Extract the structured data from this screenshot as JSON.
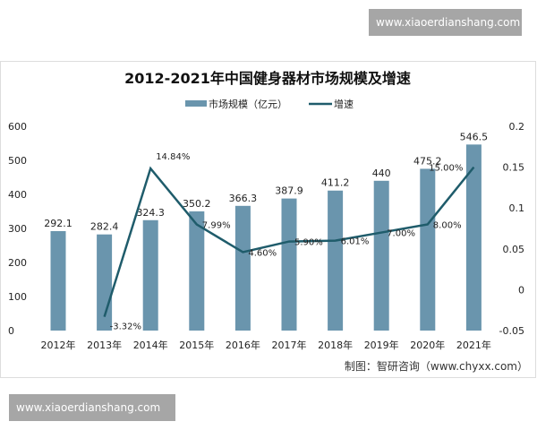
{
  "watermark": "www.xiaoerdianshang.com",
  "source": "制图：智研咨询（www.chyxx.com）",
  "logo_text": "智研咨询 www.chyxx.com",
  "chart_data": {
    "type": "bar+line",
    "title": "2012-2021年中国健身器材市场规模及增速",
    "categories": [
      "2012年",
      "2013年",
      "2014年",
      "2015年",
      "2016年",
      "2017年",
      "2018年",
      "2019年",
      "2020年",
      "2021年"
    ],
    "series": [
      {
        "name": "市场规模（亿元）",
        "type": "bar",
        "axis": "left",
        "color": "#6a95ad",
        "values": [
          292.1,
          282.4,
          324.3,
          350.2,
          366.3,
          387.9,
          411.2,
          440,
          475.2,
          546.5
        ],
        "labels": [
          "292.1",
          "282.4",
          "324.3",
          "350.2",
          "366.3",
          "387.9",
          "411.2",
          "440",
          "475.2",
          "546.5"
        ]
      },
      {
        "name": "增速",
        "type": "line",
        "axis": "right",
        "color": "#1f5c6b",
        "values": [
          null,
          -0.0332,
          0.1484,
          0.0799,
          0.046,
          0.059,
          0.0601,
          0.07,
          0.08,
          0.15
        ],
        "labels": [
          "",
          "-3.32%",
          "14.84%",
          "7.99%",
          "4.60%",
          "5.90%",
          "6.01%",
          "7.00%",
          "8.00%",
          "15.00%"
        ]
      }
    ],
    "ylim": [
      0,
      600
    ],
    "yticks": [
      "0",
      "100",
      "200",
      "300",
      "400",
      "500",
      "600"
    ],
    "y2lim": [
      -0.05,
      0.2
    ],
    "y2ticks": [
      "-0.05",
      "0",
      "0.05",
      "0.1",
      "0.15",
      "0.2"
    ],
    "legend": "top"
  }
}
